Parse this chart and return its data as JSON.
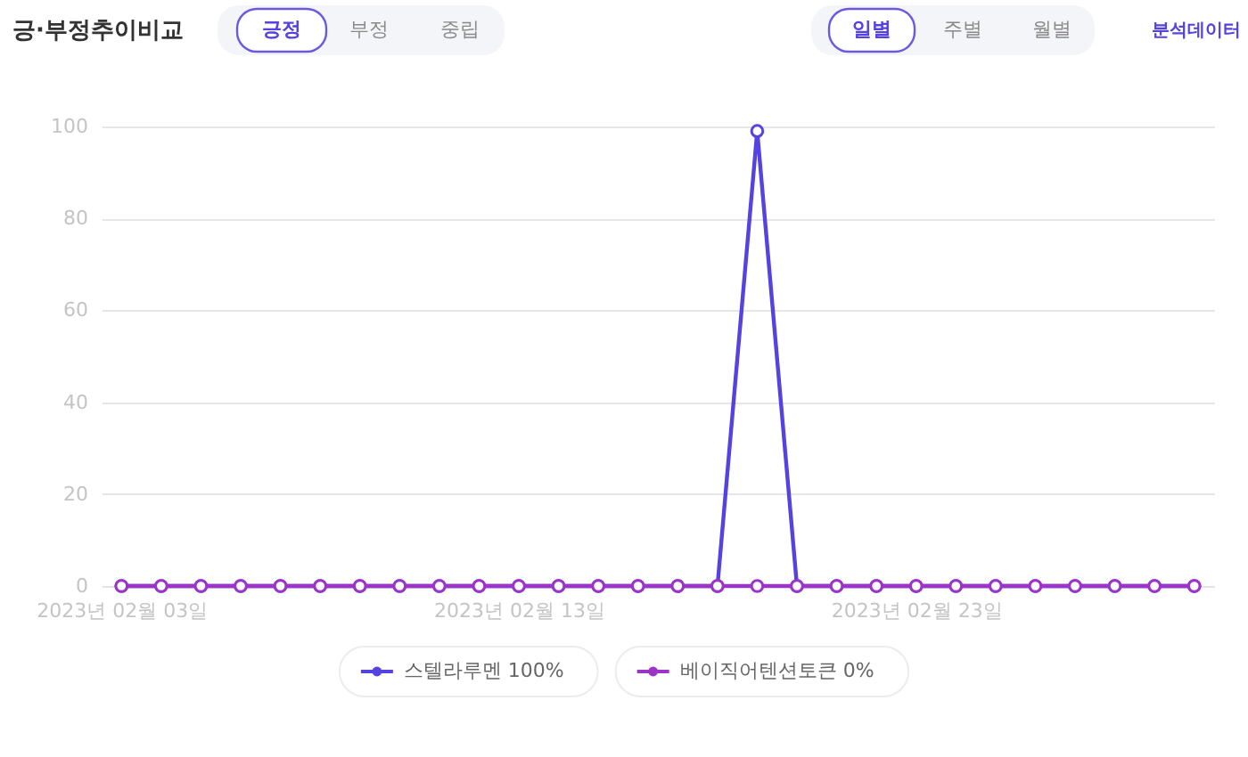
{
  "chart_data": {
    "type": "line",
    "title": "긍·부정추이비교",
    "annotations": [
      "긍정",
      "부정",
      "중립",
      "일별",
      "주별",
      "월별",
      "분석데이터"
    ],
    "categories": [
      "2023년 02월 03일",
      null,
      null,
      null,
      null,
      null,
      null,
      null,
      null,
      null,
      "2023년 02월 13일",
      null,
      null,
      null,
      null,
      null,
      null,
      null,
      null,
      null,
      "2023년 02월 23일",
      null,
      null,
      null,
      null,
      null,
      null,
      null
    ],
    "series": [
      {
        "name": "스텔라루멘 100%",
        "color": "#5443e0",
        "values": [
          0,
          0,
          0,
          0,
          0,
          0,
          0,
          0,
          0,
          0,
          0,
          0,
          0,
          0,
          0,
          0,
          99,
          0,
          0,
          0,
          0,
          0,
          0,
          0,
          0,
          0,
          0,
          0
        ]
      },
      {
        "name": "베이직어텐션토큰 0%",
        "color": "#9c34c8",
        "values": [
          0,
          0,
          0,
          0,
          0,
          0,
          0,
          0,
          0,
          0,
          0,
          0,
          0,
          0,
          0,
          0,
          0,
          0,
          0,
          0,
          0,
          0,
          0,
          0,
          0,
          0,
          0,
          0
        ]
      }
    ],
    "ylim": [
      0,
      100
    ],
    "yticks": [
      0,
      20,
      40,
      60,
      80,
      100
    ],
    "grid": "y",
    "legend": "bottom",
    "marker": "circle",
    "line_style": "solid"
  }
}
